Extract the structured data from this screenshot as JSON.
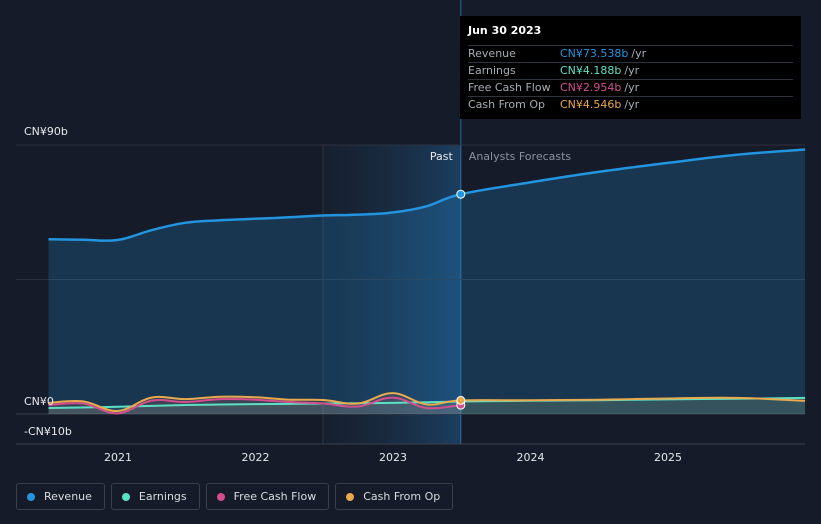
{
  "chart_data": {
    "type": "area",
    "x_ticks": [
      "2021",
      "2022",
      "2023",
      "2024",
      "2025"
    ],
    "y_ticks": [
      "CN¥90b",
      "CN¥0",
      "-CN¥10b"
    ],
    "ylim": [
      -10,
      90
    ],
    "past_label": "Past",
    "forecast_label": "Analysts Forecasts",
    "past_end": "2023-06-30",
    "series": [
      {
        "name": "Revenue",
        "color": "#2394df",
        "points": [
          [
            "2020-06-30",
            58.5
          ],
          [
            "2020-09-30",
            58.3
          ],
          [
            "2020-12-31",
            58.2
          ],
          [
            "2021-03-31",
            61.5
          ],
          [
            "2021-06-30",
            64.0
          ],
          [
            "2021-09-30",
            64.8
          ],
          [
            "2021-12-31",
            65.3
          ],
          [
            "2022-03-31",
            65.8
          ],
          [
            "2022-06-30",
            66.4
          ],
          [
            "2022-09-30",
            66.7
          ],
          [
            "2022-12-31",
            67.4
          ],
          [
            "2023-03-31",
            69.5
          ],
          [
            "2023-06-30",
            73.538
          ],
          [
            "2023-12-31",
            77.5
          ],
          [
            "2024-06-30",
            81.0
          ],
          [
            "2024-12-31",
            84.0
          ],
          [
            "2025-06-30",
            86.7
          ],
          [
            "2025-12-31",
            88.5
          ]
        ]
      },
      {
        "name": "Earnings",
        "color": "#5ce0c4",
        "points": [
          [
            "2020-06-30",
            2.0
          ],
          [
            "2020-12-31",
            2.4
          ],
          [
            "2021-06-30",
            3.0
          ],
          [
            "2021-12-31",
            3.3
          ],
          [
            "2022-06-30",
            3.5
          ],
          [
            "2022-12-31",
            3.7
          ],
          [
            "2023-06-30",
            4.188
          ],
          [
            "2023-12-31",
            4.4
          ],
          [
            "2024-06-30",
            4.6
          ],
          [
            "2024-12-31",
            4.9
          ],
          [
            "2025-06-30",
            5.1
          ],
          [
            "2025-12-31",
            5.4
          ]
        ]
      },
      {
        "name": "Free Cash Flow",
        "color": "#d24e8f",
        "points": [
          [
            "2020-06-30",
            3.0
          ],
          [
            "2020-09-30",
            3.5
          ],
          [
            "2020-12-31",
            0.2
          ],
          [
            "2021-03-31",
            4.5
          ],
          [
            "2021-06-30",
            4.0
          ],
          [
            "2021-09-30",
            5.0
          ],
          [
            "2021-12-31",
            4.8
          ],
          [
            "2022-03-31",
            4.0
          ],
          [
            "2022-06-30",
            3.5
          ],
          [
            "2022-09-30",
            2.5
          ],
          [
            "2022-12-31",
            5.5
          ],
          [
            "2023-03-31",
            2.0
          ],
          [
            "2023-06-30",
            2.954
          ]
        ]
      },
      {
        "name": "Cash From Op",
        "color": "#e9a94d",
        "points": [
          [
            "2020-06-30",
            3.7
          ],
          [
            "2020-09-30",
            4.2
          ],
          [
            "2020-12-31",
            1.0
          ],
          [
            "2021-03-31",
            5.5
          ],
          [
            "2021-06-30",
            5.0
          ],
          [
            "2021-09-30",
            5.8
          ],
          [
            "2021-12-31",
            5.6
          ],
          [
            "2022-03-31",
            4.8
          ],
          [
            "2022-06-30",
            4.7
          ],
          [
            "2022-09-30",
            3.5
          ],
          [
            "2022-12-31",
            7.0
          ],
          [
            "2023-03-31",
            3.2
          ],
          [
            "2023-06-30",
            4.546
          ],
          [
            "2023-12-31",
            4.6
          ],
          [
            "2024-06-30",
            4.8
          ],
          [
            "2024-12-31",
            5.2
          ],
          [
            "2025-06-30",
            5.4
          ],
          [
            "2025-12-31",
            4.4
          ]
        ]
      }
    ]
  },
  "tooltip": {
    "date": "Jun 30 2023",
    "rows": [
      {
        "label": "Revenue",
        "value": "CN¥73.538b",
        "unit": "/yr",
        "color": "#2394df"
      },
      {
        "label": "Earnings",
        "value": "CN¥4.188b",
        "unit": "/yr",
        "color": "#5ce0c4"
      },
      {
        "label": "Free Cash Flow",
        "value": "CN¥2.954b",
        "unit": "/yr",
        "color": "#d24e8f"
      },
      {
        "label": "Cash From Op",
        "value": "CN¥4.546b",
        "unit": "/yr",
        "color": "#e9a94d"
      }
    ]
  },
  "legend": [
    {
      "label": "Revenue",
      "color": "#2394df"
    },
    {
      "label": "Earnings",
      "color": "#5ce0c4"
    },
    {
      "label": "Free Cash Flow",
      "color": "#d24e8f"
    },
    {
      "label": "Cash From Op",
      "color": "#e9a94d"
    }
  ]
}
